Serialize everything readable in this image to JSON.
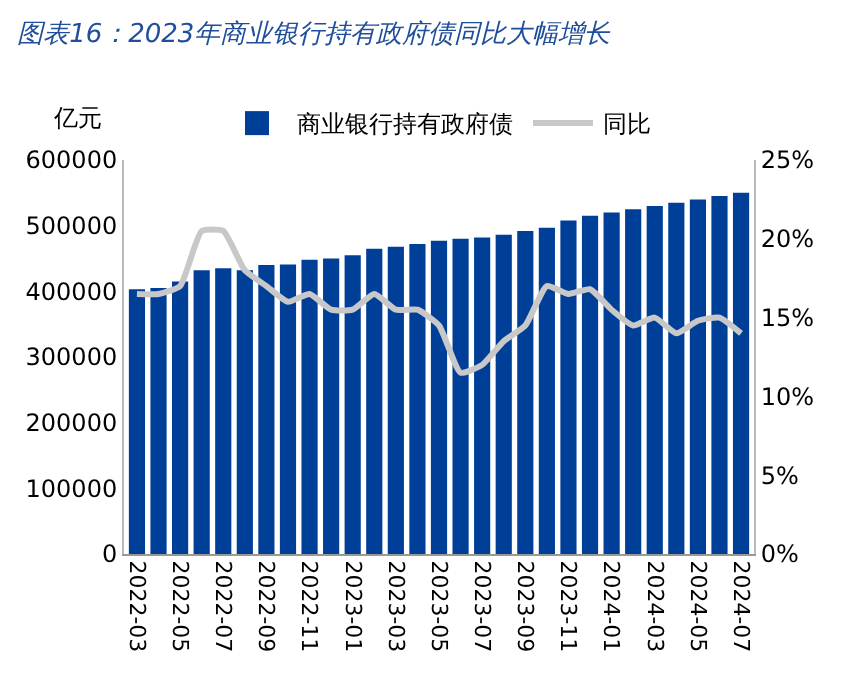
{
  "chart_data": {
    "type": "bar",
    "title": "图表16：2023年商业银行持有政府债同比大幅增长",
    "ylabel": "亿元",
    "categories": [
      "2022-03",
      null,
      "2022-05",
      null,
      "2022-07",
      null,
      "2022-09",
      null,
      "2022-11",
      null,
      "2023-01",
      null,
      "2023-03",
      null,
      "2023-05",
      null,
      "2023-07",
      null,
      "2023-09",
      null,
      "2023-11",
      null,
      "2024-01",
      null,
      "2024-03",
      null,
      "2024-05",
      null,
      "2024-07"
    ],
    "series": [
      {
        "name": "商业银行持有政府债",
        "color": "#003f98",
        "values": [
          403000,
          405000,
          415000,
          432000,
          435000,
          432000,
          440000,
          441000,
          448000,
          450000,
          455000,
          465000,
          468000,
          472000,
          477000,
          480000,
          482000,
          486000,
          492000,
          497000,
          508000,
          515000,
          520000,
          525000,
          530000,
          535000,
          540000,
          545000,
          550000
        ]
      },
      {
        "name": "同比",
        "type": "line",
        "axis": "y2",
        "color": "#c8c8c8",
        "values": [
          16.5,
          16.5,
          17,
          20.5,
          20.5,
          18,
          17,
          16,
          16.5,
          15.5,
          15.5,
          16.5,
          15.5,
          15.5,
          14.5,
          11.5,
          12,
          13.5,
          14.5,
          17,
          16.5,
          16.8,
          15.5,
          14.5,
          15,
          14,
          14.8,
          15,
          14
        ]
      }
    ],
    "ylim": [
      0,
      600000
    ],
    "yticks": [
      0,
      100000,
      200000,
      300000,
      400000,
      500000,
      600000
    ],
    "y2lim": [
      0,
      25
    ],
    "y2ticks": [
      {
        "value": 0,
        "label": "0%"
      },
      {
        "value": 5,
        "label": "5%"
      },
      {
        "value": 10,
        "label": "10%"
      },
      {
        "value": 15,
        "label": "15%"
      },
      {
        "value": 20,
        "label": "20%"
      },
      {
        "value": 25,
        "label": "25%"
      }
    ],
    "legend": "top",
    "marker": "none",
    "line_style": "solid"
  }
}
